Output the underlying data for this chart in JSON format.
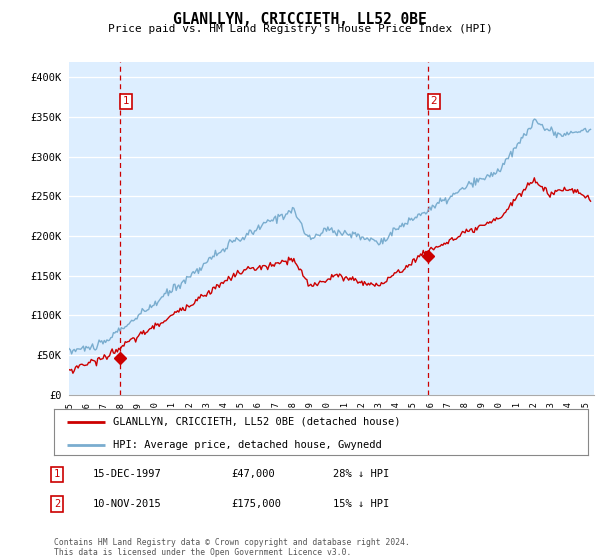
{
  "title": "GLANLLYN, CRICCIETH, LL52 0BE",
  "subtitle": "Price paid vs. HM Land Registry's House Price Index (HPI)",
  "xlim": [
    1995.0,
    2025.5
  ],
  "ylim": [
    0,
    420000
  ],
  "yticks": [
    0,
    50000,
    100000,
    150000,
    200000,
    250000,
    300000,
    350000,
    400000
  ],
  "red_line_color": "#cc0000",
  "blue_line_color": "#7aadcf",
  "marker1_x": 1997.96,
  "marker1_y": 47000,
  "marker2_x": 2015.86,
  "marker2_y": 175000,
  "vline1_x": 1997.96,
  "vline2_x": 2015.86,
  "legend_entries": [
    "GLANLLYN, CRICCIETH, LL52 0BE (detached house)",
    "HPI: Average price, detached house, Gwynedd"
  ],
  "table_rows": [
    [
      "1",
      "15-DEC-1997",
      "£47,000",
      "28% ↓ HPI"
    ],
    [
      "2",
      "10-NOV-2015",
      "£175,000",
      "15% ↓ HPI"
    ]
  ],
  "footnote": "Contains HM Land Registry data © Crown copyright and database right 2024.\nThis data is licensed under the Open Government Licence v3.0.",
  "background_color": "#ffffff",
  "plot_bg_color": "#ddeeff",
  "grid_color": "#ffffff"
}
